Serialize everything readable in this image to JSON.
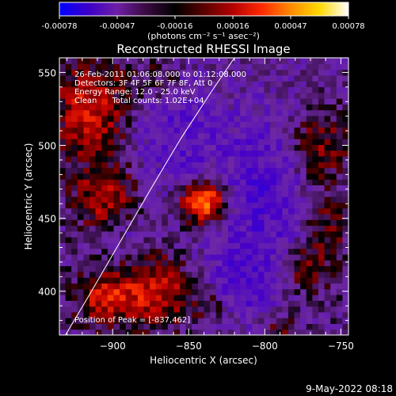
{
  "colorbar": {
    "ticks": [
      "-0.00078",
      "-0.00047",
      "-0.00016",
      "0.00016",
      "0.00047",
      "0.00078"
    ],
    "unit_label": "(photons cm⁻² s⁻¹ asec⁻²)",
    "colors": [
      "#0000ff",
      "#3c00c8",
      "#6e1fa6",
      "#3a0a40",
      "#000000",
      "#5a0000",
      "#b40000",
      "#ff2a00",
      "#ff8a00",
      "#ffd800",
      "#ffffff"
    ]
  },
  "chart_data": {
    "type": "heatmap",
    "title": "Reconstructed RHESSI Image",
    "xlabel": "Heliocentric X (arcsec)",
    "ylabel": "Heliocentric Y (arcsec)",
    "xlim": [
      -935,
      -745
    ],
    "ylim": [
      370,
      560
    ],
    "x_ticks": [
      -900,
      -850,
      -800,
      -750
    ],
    "y_ticks": [
      400,
      450,
      500,
      550
    ],
    "x_tick_labels": [
      "−900",
      "−850",
      "−800",
      "−750"
    ],
    "y_tick_labels": [
      "400",
      "450",
      "500",
      "550"
    ],
    "annotations": [
      "26-Feb-2011 01:06:08.000 to 01:12:08.000",
      "Detectors: 3F 4F 5F 6F 7F 8F, Att 0",
      "Energy Range: 12.0 - 25.0 keV",
      "Clean      Total counts: 1.02E+04"
    ],
    "peak_label": "Position of Peak = [-837,462]",
    "peak": {
      "x": -837,
      "y": 462
    },
    "limb_curve": [
      [
        -935,
        363
      ],
      [
        -915,
        398
      ],
      [
        -895,
        434
      ],
      [
        -875,
        470
      ],
      [
        -855,
        505
      ],
      [
        -835,
        537
      ],
      [
        -818,
        563
      ]
    ],
    "sources": [
      {
        "x": -840,
        "y": 462,
        "amp": 1.0,
        "sx": 10,
        "sy": 10
      },
      {
        "x": -915,
        "y": 525,
        "amp": 0.55,
        "sx": 17,
        "sy": 22
      },
      {
        "x": -905,
        "y": 465,
        "amp": 0.45,
        "sx": 14,
        "sy": 16
      },
      {
        "x": -870,
        "y": 400,
        "amp": 0.5,
        "sx": 20,
        "sy": 16
      },
      {
        "x": -905,
        "y": 395,
        "amp": 0.45,
        "sx": 14,
        "sy": 12
      },
      {
        "x": -765,
        "y": 500,
        "amp": 0.4,
        "sx": 14,
        "sy": 18
      },
      {
        "x": -760,
        "y": 445,
        "amp": 0.35,
        "sx": 10,
        "sy": 16
      },
      {
        "x": -775,
        "y": 415,
        "amp": 0.35,
        "sx": 12,
        "sy": 12
      },
      {
        "x": -835,
        "y": 390,
        "amp": 0.3,
        "sx": 8,
        "sy": 8
      },
      {
        "x": -870,
        "y": 545,
        "amp": 0.25,
        "sx": 12,
        "sy": 10
      },
      {
        "x": -790,
        "y": 375,
        "amp": 0.25,
        "sx": 8,
        "sy": 8
      },
      {
        "x": -860,
        "y": 510,
        "amp": -0.3,
        "sx": 20,
        "sy": 30
      },
      {
        "x": -800,
        "y": 470,
        "amp": -0.35,
        "sx": 25,
        "sy": 45
      },
      {
        "x": -820,
        "y": 405,
        "amp": -0.3,
        "sx": 20,
        "sy": 20
      },
      {
        "x": -890,
        "y": 440,
        "amp": -0.15,
        "sx": 10,
        "sy": 10
      }
    ]
  },
  "footer": {
    "date": "9-May-2022 08:18"
  }
}
